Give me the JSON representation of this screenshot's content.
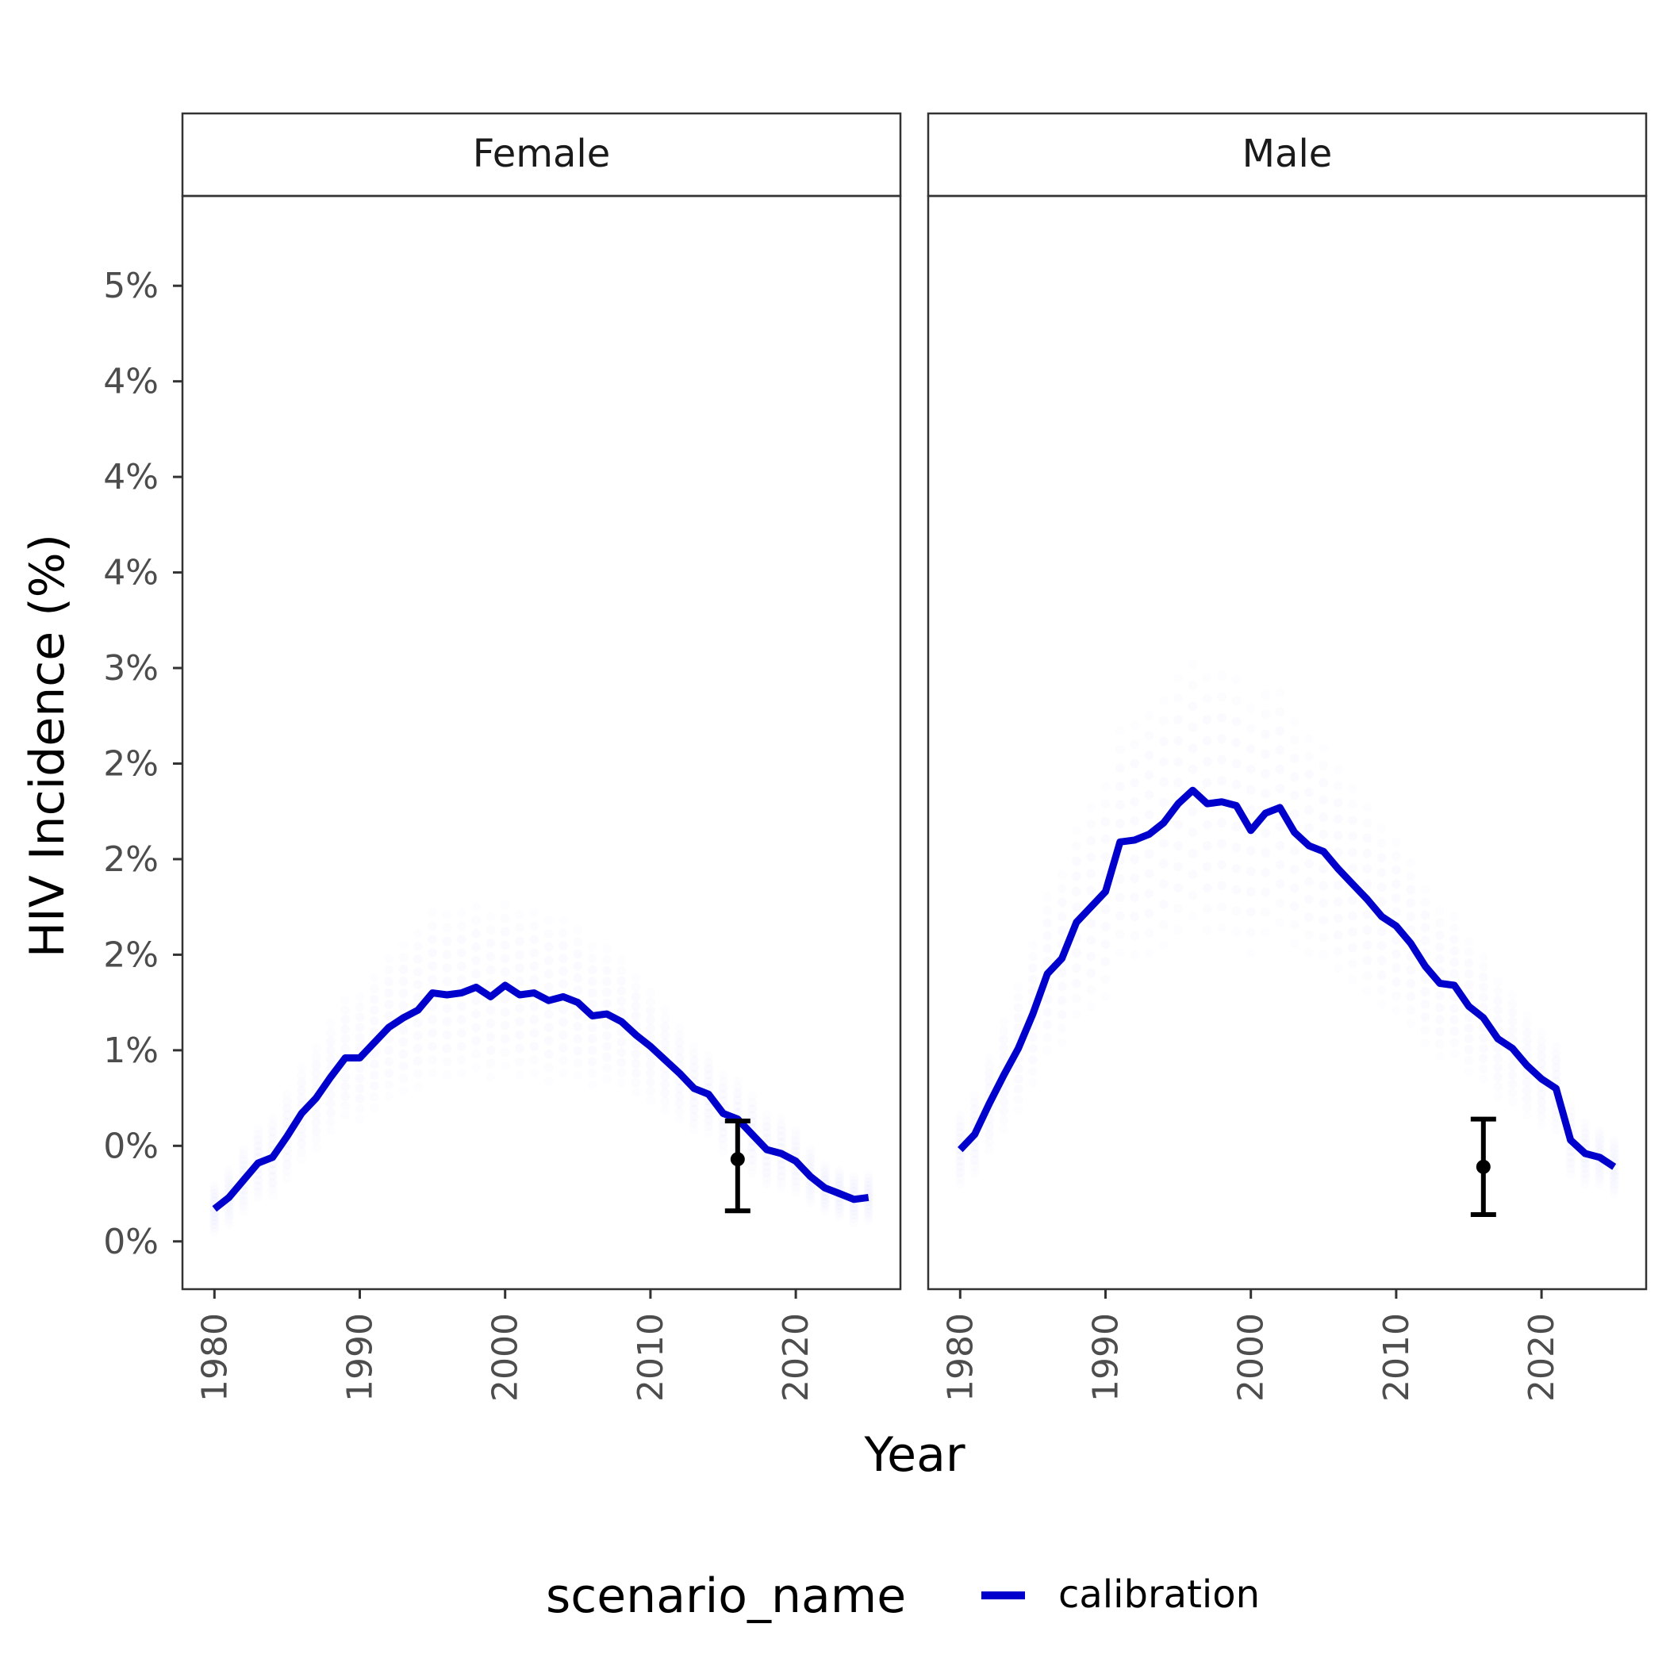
{
  "chart_data": {
    "type": "line",
    "ylabel": "HIV Incidence (%)",
    "xlabel": "Year",
    "x_ticks": [
      1980,
      1990,
      2000,
      2010,
      2020
    ],
    "y_ticks": [
      0,
      0.5,
      1.0,
      1.5,
      2.0,
      2.5,
      3.0,
      3.5,
      4.0,
      4.5,
      5.0
    ],
    "y_tick_labels": [
      "0%",
      "0%",
      "1%",
      "2%",
      "2%",
      "2%",
      "3%",
      "4%",
      "4%",
      "4%",
      "5%"
    ],
    "xlim": [
      1977.8,
      2027.2
    ],
    "ylim": [
      -0.25,
      5.47
    ],
    "grid": false,
    "legend": {
      "title": "scenario_name",
      "position": "bottom",
      "entries": [
        {
          "name": "calibration",
          "color": "#0000cc"
        }
      ]
    },
    "line_color": "#0000cc",
    "cloud_color": "#0000ff",
    "errorbar_color": "#000000",
    "panels": [
      {
        "strip": "Female",
        "series": [
          {
            "name": "calibration",
            "x": [
              1980,
              1981,
              1982,
              1983,
              1984,
              1985,
              1986,
              1987,
              1988,
              1989,
              1990,
              1991,
              1992,
              1993,
              1994,
              1995,
              1996,
              1997,
              1998,
              1999,
              2000,
              2001,
              2002,
              2003,
              2004,
              2005,
              2006,
              2007,
              2008,
              2009,
              2010,
              2011,
              2012,
              2013,
              2014,
              2015,
              2016,
              2017,
              2018,
              2019,
              2020,
              2021,
              2022,
              2023,
              2024,
              2025
            ],
            "y": [
              0.17,
              0.23,
              0.32,
              0.41,
              0.44,
              0.55,
              0.67,
              0.75,
              0.86,
              0.96,
              0.96,
              1.04,
              1.12,
              1.17,
              1.21,
              1.3,
              1.29,
              1.3,
              1.33,
              1.28,
              1.34,
              1.29,
              1.3,
              1.26,
              1.28,
              1.25,
              1.18,
              1.19,
              1.15,
              1.08,
              1.02,
              0.95,
              0.88,
              0.8,
              0.77,
              0.67,
              0.64,
              0.56,
              0.48,
              0.46,
              0.42,
              0.34,
              0.28,
              0.25,
              0.22,
              0.23
            ]
          }
        ],
        "errorbar": {
          "x": 2016,
          "y": 0.43,
          "ymin": 0.16,
          "ymax": 0.63
        },
        "cloud_spread": [
          0.12,
          0.14,
          0.16,
          0.18,
          0.2,
          0.22,
          0.24,
          0.26,
          0.28,
          0.3,
          0.32,
          0.34,
          0.36,
          0.38,
          0.4,
          0.42,
          0.42,
          0.42,
          0.42,
          0.42,
          0.42,
          0.42,
          0.42,
          0.42,
          0.4,
          0.38,
          0.36,
          0.34,
          0.32,
          0.3,
          0.28,
          0.26,
          0.24,
          0.22,
          0.2,
          0.2,
          0.2,
          0.2,
          0.18,
          0.18,
          0.16,
          0.14,
          0.12,
          0.12,
          0.12,
          0.12
        ]
      },
      {
        "strip": "Male",
        "series": [
          {
            "name": "calibration",
            "x": [
              1980,
              1981,
              1982,
              1983,
              1984,
              1985,
              1986,
              1987,
              1988,
              1989,
              1990,
              1991,
              1992,
              1993,
              1994,
              1995,
              1996,
              1997,
              1998,
              1999,
              2000,
              2001,
              2002,
              2003,
              2004,
              2005,
              2006,
              2007,
              2008,
              2009,
              2010,
              2011,
              2012,
              2013,
              2014,
              2015,
              2016,
              2017,
              2018,
              2019,
              2020,
              2021,
              2022,
              2023,
              2024,
              2025
            ],
            "y": [
              0.48,
              0.56,
              0.72,
              0.87,
              1.01,
              1.19,
              1.4,
              1.48,
              1.67,
              1.75,
              1.83,
              2.09,
              2.1,
              2.13,
              2.19,
              2.29,
              2.36,
              2.29,
              2.3,
              2.28,
              2.15,
              2.24,
              2.27,
              2.14,
              2.07,
              2.04,
              1.95,
              1.87,
              1.79,
              1.7,
              1.65,
              1.56,
              1.44,
              1.35,
              1.34,
              1.23,
              1.17,
              1.06,
              1.01,
              0.92,
              0.85,
              0.8,
              0.53,
              0.46,
              0.44,
              0.39
            ]
          }
        ],
        "errorbar": {
          "x": 2016,
          "y": 0.39,
          "ymin": 0.14,
          "ymax": 0.64
        },
        "cloud_spread": [
          0.18,
          0.2,
          0.24,
          0.28,
          0.32,
          0.36,
          0.4,
          0.44,
          0.48,
          0.52,
          0.55,
          0.58,
          0.6,
          0.62,
          0.64,
          0.66,
          0.66,
          0.66,
          0.66,
          0.66,
          0.64,
          0.62,
          0.6,
          0.58,
          0.56,
          0.54,
          0.52,
          0.5,
          0.48,
          0.46,
          0.44,
          0.42,
          0.4,
          0.38,
          0.36,
          0.34,
          0.32,
          0.3,
          0.28,
          0.26,
          0.24,
          0.22,
          0.18,
          0.16,
          0.14,
          0.14
        ]
      }
    ]
  }
}
